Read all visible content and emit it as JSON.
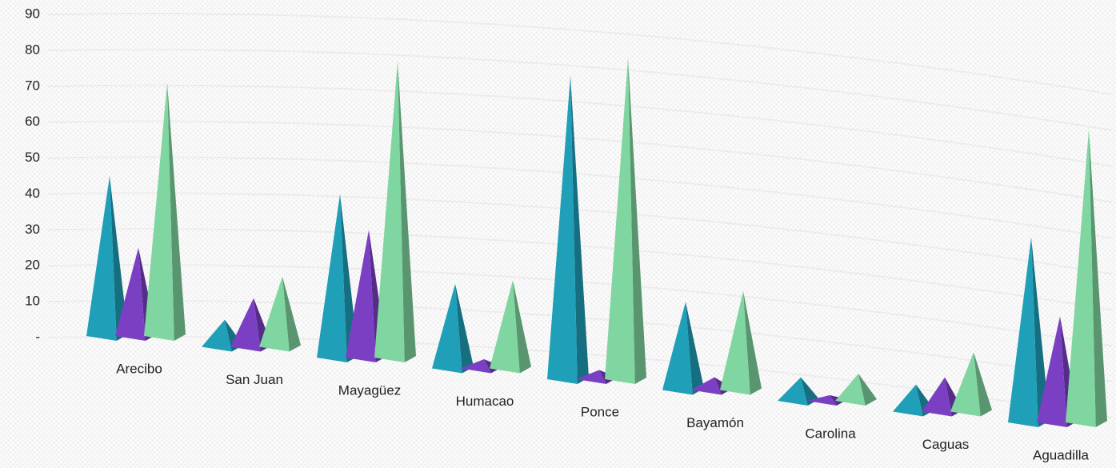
{
  "chart_data": {
    "type": "pyramid3d",
    "categories": [
      "Arecibo",
      "San Juan",
      "Mayagüez",
      "Humacao",
      "Ponce",
      "Bayamón",
      "Carolina",
      "Caguas",
      "Aguadilla"
    ],
    "series": [
      {
        "color": "#1f9fb8",
        "values": [
          45,
          8,
          46,
          24,
          85,
          25,
          7,
          8,
          52
        ]
      },
      {
        "color": "#7b3fc4",
        "values": [
          25,
          14,
          36,
          3,
          3,
          4,
          2,
          10,
          30
        ]
      },
      {
        "color": "#7fd6a0",
        "values": [
          71,
          20,
          83,
          25,
          90,
          28,
          8,
          17,
          82
        ]
      }
    ],
    "ylim": [
      0,
      90
    ],
    "yticks": [
      {
        "value": 0,
        "label": "-"
      },
      10,
      20,
      30,
      40,
      50,
      60,
      70,
      80,
      90
    ],
    "grid": true
  }
}
